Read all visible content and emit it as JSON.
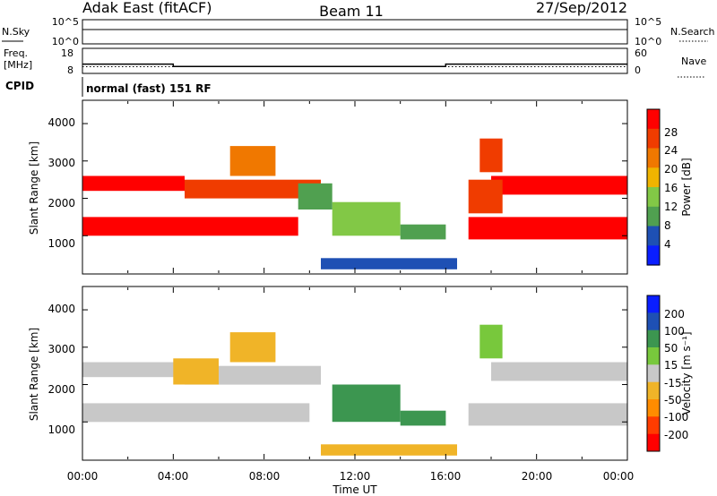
{
  "header": {
    "title": "Adak East (fitACF)",
    "beam": "Beam 11",
    "date": "27/Sep/2012"
  },
  "noise_panel": {
    "left_label": "N.Sky",
    "right_label": "N.Search",
    "left_ticks": [
      "10^5",
      "10^0"
    ],
    "right_ticks": [
      "10^5",
      "10^0"
    ]
  },
  "freq_panel": {
    "left_label_1": "Freq.",
    "left_label_2": "[MHz]",
    "right_label": "Nave",
    "left_ticks": [
      "18",
      "8"
    ],
    "right_ticks": [
      "60",
      "0"
    ]
  },
  "cpid": {
    "label": "CPID",
    "text": "normal (fast) 151 RF"
  },
  "x_axis": {
    "title": "Time UT",
    "ticks": [
      "00:00",
      "04:00",
      "08:00",
      "12:00",
      "16:00",
      "20:00",
      "00:00"
    ]
  },
  "power_panel": {
    "ylabel": "Slant Range [km]",
    "yticks": [
      "1000",
      "2000",
      "3000",
      "4000"
    ],
    "colorbar_title": "Power [dB]",
    "colorbar_ticks": [
      "4",
      "8",
      "12",
      "16",
      "20",
      "24",
      "28"
    ]
  },
  "velocity_panel": {
    "ylabel": "Slant Range [km]",
    "yticks": [
      "1000",
      "2000",
      "3000",
      "4000"
    ],
    "colorbar_title": "Velocity [m s⁻¹]",
    "colorbar_ticks": [
      "200",
      "100",
      "50",
      "15",
      "-15",
      "-50",
      "-100",
      "-200"
    ]
  },
  "chart_data": [
    {
      "type": "line",
      "title": "",
      "xlabel": "",
      "ylabel": "N.Sky",
      "xlim": [
        0,
        24
      ],
      "yscale": "log",
      "ylim": [
        1,
        100000
      ],
      "series": [
        {
          "name": "N.Sky",
          "x": [
            0,
            2,
            4,
            6,
            8,
            10,
            12,
            14,
            16,
            18,
            20,
            22,
            24
          ],
          "values": [
            1000,
            1000,
            1000,
            1000,
            1000,
            1000,
            1000,
            1000,
            1000,
            1000,
            1000,
            1000,
            1000
          ]
        }
      ]
    },
    {
      "type": "line",
      "title": "",
      "xlabel": "",
      "ylabel": "Freq. [MHz]",
      "xlim": [
        0,
        24
      ],
      "ylim": [
        8,
        18
      ],
      "y2label": "Nave",
      "y2lim": [
        0,
        60
      ],
      "series": [
        {
          "name": "Freq.",
          "x": [
            0,
            4,
            4,
            16,
            16,
            24
          ],
          "values": [
            11.6,
            11.6,
            10.6,
            10.6,
            11.6,
            11.6
          ]
        },
        {
          "name": "Nave",
          "x": [
            0,
            24
          ],
          "values": [
            15,
            15
          ]
        }
      ]
    },
    {
      "type": "heatmap",
      "title": "",
      "xlabel": "Time UT",
      "ylabel": "Slant Range [km]",
      "xlim": [
        0,
        24
      ],
      "ylim": [
        0,
        4600
      ],
      "colorbar_label": "Power [dB]",
      "colorbar_ticks": [
        4,
        8,
        12,
        16,
        20,
        24,
        28
      ],
      "colors": [
        "#0a1eff",
        "#1e50b4",
        "#50a050",
        "#82c846",
        "#f0b400",
        "#f07800",
        "#f03c00",
        "#ff0000"
      ],
      "regions": [
        {
          "t0": 0,
          "t1": 4.5,
          "r0": 2200,
          "r1": 2600,
          "power_db": 28
        },
        {
          "t0": 0,
          "t1": 9.5,
          "r0": 1000,
          "r1": 1500,
          "power_db": 28
        },
        {
          "t0": 4.5,
          "t1": 10.5,
          "r0": 2000,
          "r1": 2500,
          "power_db": 26
        },
        {
          "t0": 6.5,
          "t1": 8.5,
          "r0": 2600,
          "r1": 3400,
          "power_db": 20
        },
        {
          "t0": 11,
          "t1": 14,
          "r0": 1000,
          "r1": 1900,
          "power_db": 14
        },
        {
          "t0": 9.5,
          "t1": 11,
          "r0": 1700,
          "r1": 2400,
          "power_db": 8
        },
        {
          "t0": 14,
          "t1": 16,
          "r0": 900,
          "r1": 1300,
          "power_db": 10
        },
        {
          "t0": 10.5,
          "t1": 16.5,
          "r0": 100,
          "r1": 400,
          "power_db": 6
        },
        {
          "t0": 17,
          "t1": 24,
          "r0": 900,
          "r1": 1500,
          "power_db": 28
        },
        {
          "t0": 18,
          "t1": 24,
          "r0": 2100,
          "r1": 2600,
          "power_db": 28
        },
        {
          "t0": 17,
          "t1": 18.5,
          "r0": 1600,
          "r1": 2500,
          "power_db": 26
        },
        {
          "t0": 17.5,
          "t1": 18.5,
          "r0": 2700,
          "r1": 3600,
          "power_db": 24
        }
      ]
    },
    {
      "type": "heatmap",
      "title": "",
      "xlabel": "Time UT",
      "ylabel": "Slant Range [km]",
      "xlim": [
        0,
        24
      ],
      "ylim": [
        0,
        4600
      ],
      "colorbar_label": "Velocity [m s⁻¹]",
      "colorbar_ticks": [
        -200,
        -100,
        -50,
        -15,
        15,
        50,
        100,
        200
      ],
      "colors": [
        "#ff0000",
        "#ff3c00",
        "#ff8c00",
        "#f0b428",
        "#c8c8c8",
        "#78c83c",
        "#3c9650",
        "#1e50b4",
        "#0a1eff"
      ],
      "regions": [
        {
          "t0": 0,
          "t1": 4.5,
          "r0": 2200,
          "r1": 2600,
          "velocity": 0
        },
        {
          "t0": 0,
          "t1": 10,
          "r0": 1000,
          "r1": 1500,
          "velocity": 0
        },
        {
          "t0": 4.5,
          "t1": 10.5,
          "r0": 2000,
          "r1": 2500,
          "velocity": 0
        },
        {
          "t0": 4,
          "t1": 6,
          "r0": 2000,
          "r1": 2700,
          "velocity": -50
        },
        {
          "t0": 6.5,
          "t1": 8.5,
          "r0": 2600,
          "r1": 3400,
          "velocity": -30
        },
        {
          "t0": 11,
          "t1": 14,
          "r0": 1000,
          "r1": 2000,
          "velocity": 60
        },
        {
          "t0": 14,
          "t1": 16,
          "r0": 900,
          "r1": 1300,
          "velocity": 60
        },
        {
          "t0": 10.5,
          "t1": 16.5,
          "r0": 100,
          "r1": 400,
          "velocity": -50
        },
        {
          "t0": 17,
          "t1": 24,
          "r0": 900,
          "r1": 1500,
          "velocity": 0
        },
        {
          "t0": 18,
          "t1": 24,
          "r0": 2100,
          "r1": 2600,
          "velocity": 0
        },
        {
          "t0": 17.5,
          "t1": 18.5,
          "r0": 2700,
          "r1": 3600,
          "velocity": 40
        }
      ]
    }
  ]
}
